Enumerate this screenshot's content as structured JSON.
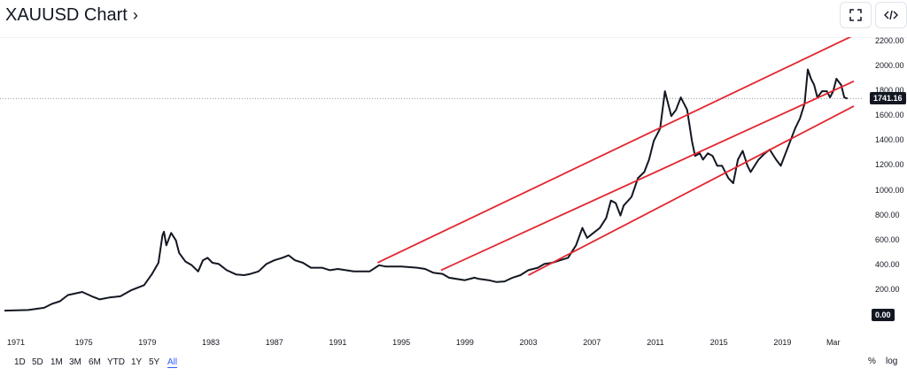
{
  "header": {
    "title": "XAUUSD Chart",
    "chevron": "›",
    "fullscreen_icon": "fullscreen-icon",
    "embed_icon": "embed-code-icon"
  },
  "footer": {
    "ranges": [
      "1D",
      "5D",
      "1M",
      "3M",
      "6M",
      "YTD",
      "1Y",
      "5Y",
      "All"
    ],
    "active_range": "All",
    "percent_label": "%",
    "log_label": "log"
  },
  "colors": {
    "price_line": "#131722",
    "channel": "#e3262f",
    "active": "#2962ff"
  },
  "chart_data": {
    "type": "line",
    "title": "",
    "xlabel": "",
    "ylabel": "",
    "xlim": [
      1970,
      2023.5
    ],
    "ylim": [
      -180,
      2300
    ],
    "x_ticks": [
      "1971",
      "1975",
      "1979",
      "1983",
      "1987",
      "1991",
      "1995",
      "1999",
      "2003",
      "2007",
      "2011",
      "2015",
      "2019",
      "Mar"
    ],
    "y_ticks": [
      "200.00",
      "400.00",
      "600.00",
      "800.00",
      "1000.00",
      "1200.00",
      "1400.00",
      "1600.00",
      "1800.00",
      "2000.00",
      "2200.00"
    ],
    "last_price": 1741.16,
    "last_price_label": "1741.16",
    "zero_label": "0.00",
    "series": [
      {
        "x": [
          1970.0,
          1971.5,
          1972.5,
          1973.0,
          1973.5,
          1974.0,
          1974.9,
          1975.5,
          1976.0,
          1976.6,
          1977.3,
          1978.0,
          1978.8,
          1979.3,
          1979.7,
          1979.95,
          1980.05,
          1980.2,
          1980.5,
          1980.8,
          1981.0,
          1981.4,
          1981.8,
          1982.2,
          1982.5,
          1982.8,
          1983.1,
          1983.5,
          1984.0,
          1984.6,
          1985.1,
          1985.5,
          1986.0,
          1986.5,
          1987.0,
          1987.5,
          1987.9,
          1988.3,
          1988.8,
          1989.3,
          1990.0,
          1990.5,
          1991.0,
          1991.5,
          1992.0,
          1993.0,
          1993.6,
          1994.0,
          1995.0,
          1996.0,
          1996.5,
          1997.0,
          1997.6,
          1998.0,
          1999.0,
          1999.6,
          1999.9,
          2000.5,
          2001.0,
          2001.5,
          2002.0,
          2002.5,
          2003.0,
          2003.6,
          2004.0,
          2004.5,
          2005.0,
          2005.5,
          2006.0,
          2006.4,
          2006.7,
          2007.0,
          2007.5,
          2007.9,
          2008.2,
          2008.5,
          2008.8,
          2009.0,
          2009.5,
          2009.9,
          2010.3,
          2010.6,
          2010.9,
          2011.3,
          2011.6,
          2011.8,
          2012.0,
          2012.3,
          2012.6,
          2012.8,
          2013.0,
          2013.3,
          2013.5,
          2013.8,
          2014.0,
          2014.3,
          2014.6,
          2014.9,
          2015.2,
          2015.6,
          2015.9,
          2016.2,
          2016.5,
          2016.8,
          2017.0,
          2017.5,
          2017.9,
          2018.2,
          2018.6,
          2018.9,
          2019.2,
          2019.5,
          2019.8,
          2020.1,
          2020.4,
          2020.6,
          2020.8,
          2021.0,
          2021.2,
          2021.5,
          2021.8,
          2022.0,
          2022.2,
          2022.4,
          2022.7,
          2022.9,
          2023.1
        ],
        "y": [
          35,
          40,
          58,
          90,
          110,
          160,
          185,
          150,
          125,
          140,
          150,
          200,
          240,
          330,
          420,
          640,
          670,
          560,
          660,
          600,
          500,
          430,
          400,
          350,
          440,
          460,
          420,
          410,
          360,
          325,
          320,
          330,
          350,
          410,
          440,
          460,
          480,
          440,
          420,
          380,
          380,
          360,
          370,
          360,
          350,
          350,
          400,
          390,
          390,
          380,
          370,
          340,
          330,
          300,
          280,
          300,
          290,
          280,
          265,
          270,
          300,
          320,
          360,
          380,
          410,
          420,
          440,
          460,
          560,
          700,
          620,
          650,
          700,
          780,
          920,
          900,
          800,
          880,
          950,
          1100,
          1150,
          1250,
          1400,
          1500,
          1800,
          1700,
          1600,
          1650,
          1750,
          1700,
          1650,
          1400,
          1280,
          1300,
          1250,
          1300,
          1280,
          1200,
          1200,
          1100,
          1060,
          1250,
          1320,
          1200,
          1150,
          1250,
          1300,
          1330,
          1250,
          1200,
          1300,
          1400,
          1500,
          1580,
          1700,
          1975,
          1900,
          1850,
          1750,
          1800,
          1800,
          1750,
          1800,
          1900,
          1850,
          1750,
          1741.16
        ]
      }
    ],
    "channels": [
      {
        "x": [
          1993.5,
          2023.5
        ],
        "y": [
          420,
          2250
        ]
      },
      {
        "x": [
          1997.5,
          2023.5
        ],
        "y": [
          360,
          1880
        ]
      },
      {
        "x": [
          2003.0,
          2023.5
        ],
        "y": [
          320,
          1680
        ]
      }
    ]
  }
}
